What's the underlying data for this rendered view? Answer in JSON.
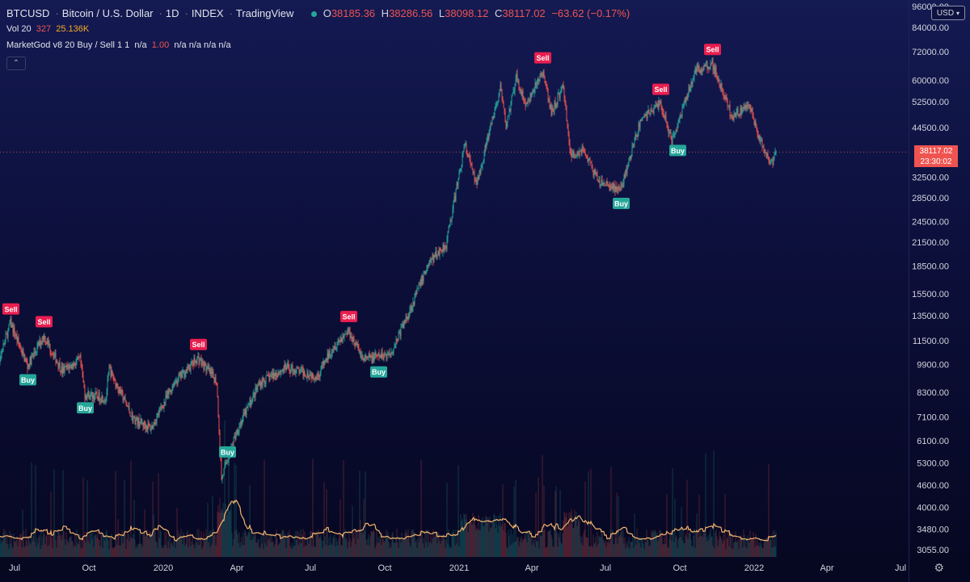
{
  "header": {
    "symbol": "BTCUSD",
    "name": "Bitcoin / U.S. Dollar",
    "interval": "1D",
    "exchange": "INDEX",
    "source": "TradingView",
    "o_label": "O",
    "o_value": "38185.36",
    "h_label": "H",
    "h_value": "38286.56",
    "l_label": "L",
    "l_value": "38098.12",
    "c_label": "C",
    "c_value": "38117.02",
    "change": "−63.62 (−0.17%)"
  },
  "indicators": {
    "vol_label": "Vol 20",
    "vol_value1": "327",
    "vol_value2": "25.136K",
    "mg_label": "MarketGod v8 20 Buy / Sell 1 1",
    "mg_v1": "n/a",
    "mg_v2": "1.00",
    "mg_v3": "n/a n/a n/a n/a"
  },
  "controls": {
    "collapse_icon": "chevron-up-icon",
    "currency": "USD",
    "settings_icon": "gear-icon"
  },
  "price_tag": {
    "price": "38117.02",
    "countdown": "23:30:02"
  },
  "colors": {
    "up": "#26a69a",
    "down": "#ef5350",
    "sell_badge": "#e91e4f",
    "buy_badge": "#26a69a",
    "volume_ma": "#f2b36b",
    "axis_text": "#d1d4dc"
  },
  "chart_data": {
    "type": "candlestick",
    "y_scale": "log",
    "y_ticks": [
      "96000.00",
      "84000.00",
      "72000.00",
      "60000.00",
      "52500.00",
      "44500.00",
      "38117.02",
      "32500.00",
      "28500.00",
      "24500.00",
      "21500.00",
      "18500.00",
      "15500.00",
      "13500.00",
      "11500.00",
      "9900.00",
      "8300.00",
      "7100.00",
      "6100.00",
      "5300.00",
      "4600.00",
      "4000.00",
      "3480.00",
      "3055.00"
    ],
    "y_tick_values": [
      96000,
      84000,
      72000,
      60000,
      52500,
      44500,
      38117.02,
      32500,
      28500,
      24500,
      21500,
      18500,
      15500,
      13500,
      11500,
      9900,
      8300,
      7100,
      6100,
      5300,
      4600,
      4000,
      3480,
      3055
    ],
    "x_ticks": [
      "Jul",
      "Oct",
      "2020",
      "Apr",
      "Jul",
      "Oct",
      "2021",
      "Apr",
      "Jul",
      "Oct",
      "2022",
      "Apr",
      "Jul"
    ],
    "x_tick_dates": [
      "2019-07-01",
      "2019-10-01",
      "2020-01-01",
      "2020-04-01",
      "2020-07-01",
      "2020-10-01",
      "2021-01-01",
      "2021-04-01",
      "2021-07-01",
      "2021-10-01",
      "2022-01-01",
      "2022-04-01",
      "2022-07-01"
    ],
    "current_price": 38117.02,
    "price_path": [
      [
        "2019-06-01",
        8500
      ],
      [
        "2019-06-26",
        12900
      ],
      [
        "2019-07-17",
        9800
      ],
      [
        "2019-08-06",
        11900
      ],
      [
        "2019-08-29",
        9500
      ],
      [
        "2019-09-20",
        10200
      ],
      [
        "2019-09-26",
        8200
      ],
      [
        "2019-10-22",
        8000
      ],
      [
        "2019-10-26",
        9600
      ],
      [
        "2019-11-25",
        7000
      ],
      [
        "2019-12-17",
        6600
      ],
      [
        "2020-01-14",
        8800
      ],
      [
        "2020-02-13",
        10300
      ],
      [
        "2020-03-07",
        8900
      ],
      [
        "2020-03-13",
        4800
      ],
      [
        "2020-04-01",
        6500
      ],
      [
        "2020-04-29",
        8800
      ],
      [
        "2020-06-01",
        9700
      ],
      [
        "2020-07-10",
        9200
      ],
      [
        "2020-07-28",
        11000
      ],
      [
        "2020-08-17",
        12300
      ],
      [
        "2020-09-05",
        10200
      ],
      [
        "2020-10-08",
        10600
      ],
      [
        "2020-10-31",
        13800
      ],
      [
        "2020-11-24",
        18800
      ],
      [
        "2020-12-16",
        21300
      ],
      [
        "2021-01-08",
        40000
      ],
      [
        "2021-01-22",
        31000
      ],
      [
        "2021-02-21",
        57000
      ],
      [
        "2021-02-28",
        45000
      ],
      [
        "2021-03-13",
        61000
      ],
      [
        "2021-03-25",
        51000
      ],
      [
        "2021-04-14",
        63500
      ],
      [
        "2021-04-25",
        49000
      ],
      [
        "2021-05-10",
        58000
      ],
      [
        "2021-05-19",
        37000
      ],
      [
        "2021-06-03",
        39000
      ],
      [
        "2021-06-22",
        31500
      ],
      [
        "2021-07-20",
        30000
      ],
      [
        "2021-08-14",
        47000
      ],
      [
        "2021-09-07",
        52000
      ],
      [
        "2021-09-21",
        41000
      ],
      [
        "2021-10-20",
        64000
      ],
      [
        "2021-11-10",
        67000
      ],
      [
        "2021-12-04",
        48000
      ],
      [
        "2021-12-27",
        51000
      ],
      [
        "2022-01-07",
        41500
      ],
      [
        "2022-01-22",
        35000
      ],
      [
        "2022-01-28",
        38117
      ]
    ],
    "signals": [
      {
        "label": "Sell",
        "date": "2019-06-26",
        "price": 12900
      },
      {
        "label": "Buy",
        "date": "2019-07-17",
        "price": 9800
      },
      {
        "label": "Sell",
        "date": "2019-08-06",
        "price": 11900
      },
      {
        "label": "Buy",
        "date": "2019-09-26",
        "price": 8200
      },
      {
        "label": "Sell",
        "date": "2020-02-13",
        "price": 10300
      },
      {
        "label": "Buy",
        "date": "2020-03-20",
        "price": 6200
      },
      {
        "label": "Sell",
        "date": "2020-08-17",
        "price": 12300
      },
      {
        "label": "Buy",
        "date": "2020-09-23",
        "price": 10300
      },
      {
        "label": "Sell",
        "date": "2021-04-14",
        "price": 63500
      },
      {
        "label": "Buy",
        "date": "2021-07-20",
        "price": 30000
      },
      {
        "label": "Sell",
        "date": "2021-09-07",
        "price": 52000
      },
      {
        "label": "Buy",
        "date": "2021-09-28",
        "price": 42000
      },
      {
        "label": "Sell",
        "date": "2021-11-10",
        "price": 67000
      }
    ]
  }
}
